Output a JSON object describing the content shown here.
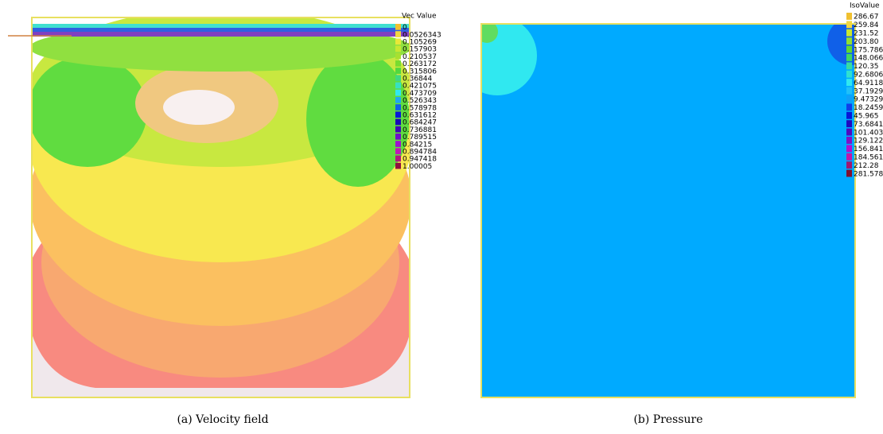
{
  "panels": [
    {
      "legend_title": "Vec Value",
      "legend": [
        {
          "label": "0",
          "color": "#f0c030"
        },
        {
          "label": "0.0526343",
          "color": "#f2d840"
        },
        {
          "label": "0.105269",
          "color": "#e8e838"
        },
        {
          "label": "0.157903",
          "color": "#c8e830"
        },
        {
          "label": "0.210537",
          "color": "#a8e030"
        },
        {
          "label": "0.263172",
          "color": "#78dc30"
        },
        {
          "label": "0.315806",
          "color": "#50d840"
        },
        {
          "label": "0.36844",
          "color": "#40d880"
        },
        {
          "label": "0.421075",
          "color": "#38e0c0"
        },
        {
          "label": "0.473709",
          "color": "#30e8f0"
        },
        {
          "label": "0.526343",
          "color": "#20a8f0"
        },
        {
          "label": "0.578978",
          "color": "#1060e8"
        },
        {
          "label": "0.631612",
          "color": "#0818d8"
        },
        {
          "label": "0.684247",
          "color": "#1808b8"
        },
        {
          "label": "0.736881",
          "color": "#4008b8"
        },
        {
          "label": "0.789515",
          "color": "#7010c8"
        },
        {
          "label": "0.84215",
          "color": "#a010d0"
        },
        {
          "label": "0.894784",
          "color": "#c018b8"
        },
        {
          "label": "0.947418",
          "color": "#b01880"
        },
        {
          "label": "1.00005",
          "color": "#901040"
        }
      ],
      "caption": "(a) Velocity field"
    },
    {
      "legend_title": "IsoValue",
      "legend": [
        {
          "label": "286.67",
          "color": "#f0c030"
        },
        {
          "label": "259.84",
          "color": "#f2d840"
        },
        {
          "label": "231.52",
          "color": "#c8e830"
        },
        {
          "label": "203.80",
          "color": "#90e030"
        },
        {
          "label": "175.786",
          "color": "#60d830"
        },
        {
          "label": "148.066",
          "color": "#40d860"
        },
        {
          "label": "120.35",
          "color": "#38dca0"
        },
        {
          "label": "92.6806",
          "color": "#30e0d0"
        },
        {
          "label": "64.9118",
          "color": "#30e8f0"
        },
        {
          "label": "37.1929",
          "color": "#20c0f8"
        },
        {
          "label": "9.47329",
          "color": "#10a0f8"
        },
        {
          "label": "18.2459",
          "color": "#1040e8"
        },
        {
          "label": "45.965",
          "color": "#0818d8"
        },
        {
          "label": "73.6841",
          "color": "#2008c0"
        },
        {
          "label": "101.403",
          "color": "#5008c0"
        },
        {
          "label": "129.122",
          "color": "#8010c8"
        },
        {
          "label": "156.841",
          "color": "#b010d0"
        },
        {
          "label": "184.561",
          "color": "#c018a8"
        },
        {
          "label": "212.28",
          "color": "#a01870"
        },
        {
          "label": "281.578",
          "color": "#801030"
        }
      ],
      "caption": "(b) Pressure"
    }
  ]
}
